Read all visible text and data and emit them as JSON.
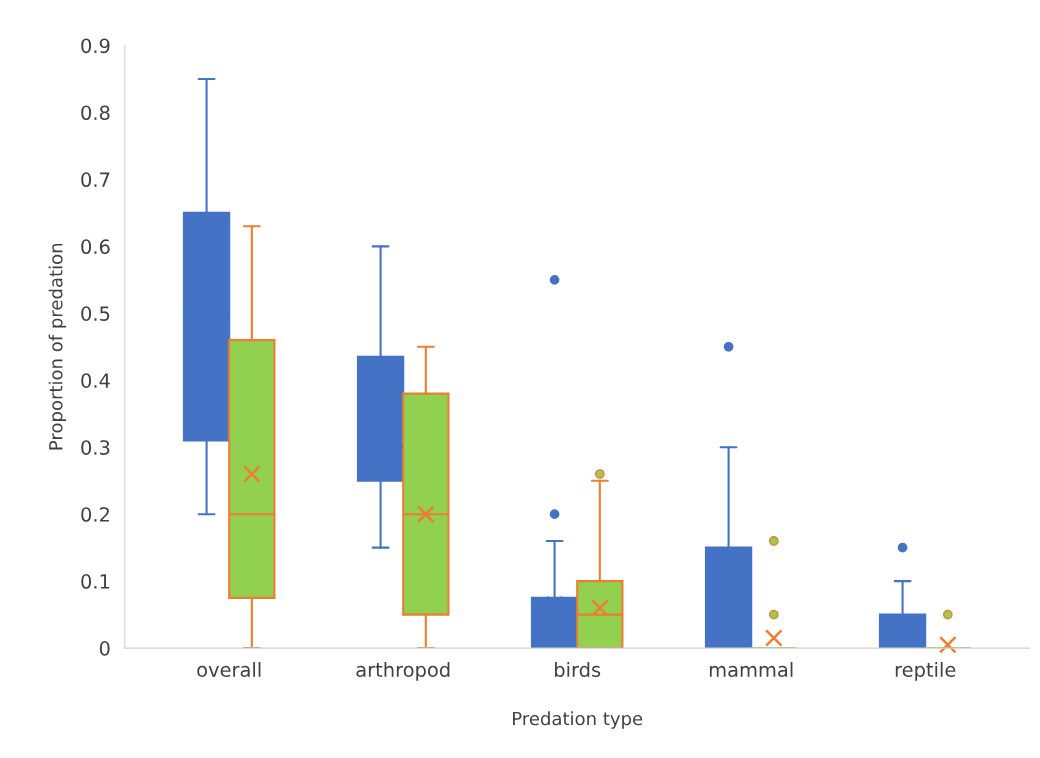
{
  "chart_data": {
    "type": "box",
    "xlabel": "Predation type",
    "ylabel": "Proportion of predation",
    "categories": [
      "overall",
      "arthropod",
      "birds",
      "mammal",
      "reptile"
    ],
    "ylim": [
      0,
      0.9
    ],
    "yticks": [
      0,
      0.1,
      0.2,
      0.3,
      0.4,
      0.5,
      0.6,
      0.7,
      0.8,
      0.9
    ],
    "grid": false,
    "legend": false,
    "series": [
      {
        "color": "#4472c4",
        "boxes": [
          {
            "low": 0.2,
            "q1": 0.31,
            "median": 0.5,
            "q3": 0.65,
            "high": 0.85,
            "mean": 0.5
          },
          {
            "low": 0.15,
            "q1": 0.25,
            "median": 0.3,
            "q3": 0.435,
            "high": 0.6,
            "mean": 0.33
          },
          {
            "low": 0,
            "q1": 0,
            "median": 0,
            "q3": 0.075,
            "high": 0.16,
            "mean": 0.065,
            "outliers": [
              0.2,
              0.55
            ]
          },
          {
            "low": 0,
            "q1": 0,
            "median": 0.05,
            "q3": 0.15,
            "high": 0.3,
            "mean": 0.1,
            "outliers": [
              0.45
            ]
          },
          {
            "low": 0,
            "q1": 0,
            "median": 0,
            "q3": 0.05,
            "high": 0.1,
            "mean": 0.035,
            "outliers": [
              0.15
            ]
          }
        ]
      },
      {
        "color": "#92d050",
        "boxes": [
          {
            "low": 0,
            "q1": 0.075,
            "median": 0.2,
            "q3": 0.46,
            "high": 0.63,
            "mean": 0.26
          },
          {
            "low": 0,
            "q1": 0.05,
            "median": 0.2,
            "q3": 0.38,
            "high": 0.45,
            "mean": 0.2
          },
          {
            "low": 0,
            "q1": 0,
            "median": 0.05,
            "q3": 0.1,
            "high": 0.25,
            "mean": 0.06,
            "outliers": [
              0.26
            ]
          },
          {
            "low": 0,
            "q1": 0,
            "median": 0,
            "q3": 0,
            "high": 0,
            "mean": 0.015,
            "outliers": [
              0.05,
              0.16
            ]
          },
          {
            "low": 0,
            "q1": 0,
            "median": 0,
            "q3": 0,
            "high": 0,
            "mean": 0.005,
            "outliers": [
              0.05
            ]
          }
        ]
      }
    ]
  }
}
